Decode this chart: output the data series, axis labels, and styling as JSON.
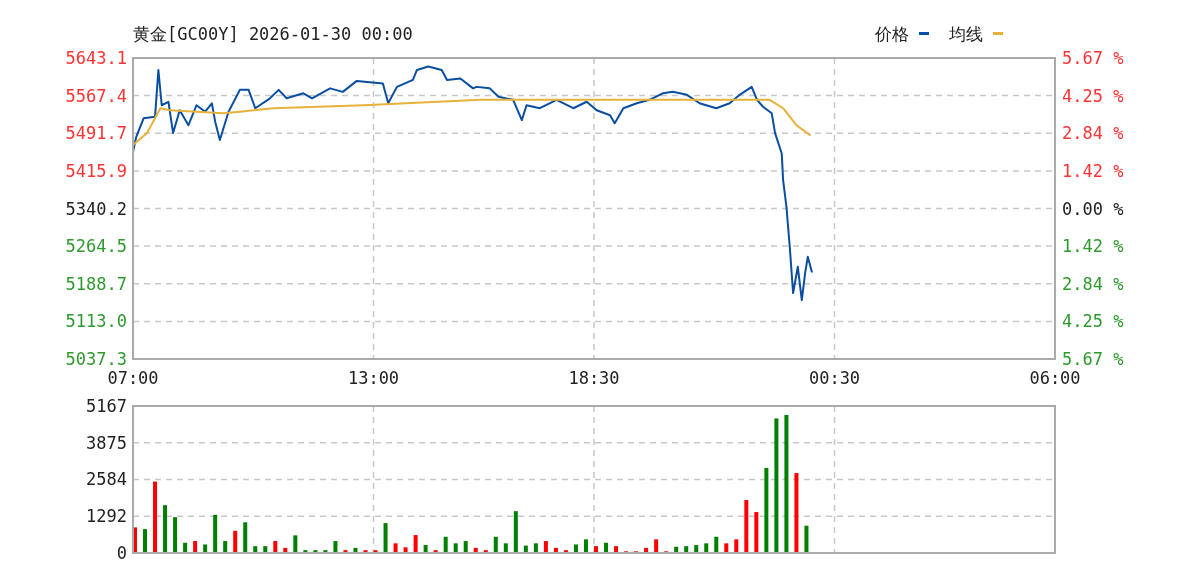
{
  "chart_data": [
    {
      "type": "line",
      "title": "黄金[GC00Y] 2026-01-30 00:00",
      "xlim": [
        "2026-01-29T07:00",
        "2026-01-30T06:00"
      ],
      "xticks": [
        {
          "value": "2026-01-29T07:00",
          "label": "07:00"
        },
        {
          "value": "2026-01-29T13:00",
          "label": "13:00"
        },
        {
          "value": "2026-01-29T18:30",
          "label": "18:30"
        },
        {
          "value": "2026-01-30T00:30",
          "label": "00:30"
        },
        {
          "value": "2026-01-30T06:00",
          "label": "06:00"
        }
      ],
      "ylim": [
        5037.3,
        5643.1
      ],
      "yticks": [
        5037.3,
        {
          "value": 5113,
          "label": "5113.0"
        },
        5188.7,
        5264.5,
        5340.2,
        5415.9,
        5491.7,
        5567.4,
        5643.1
      ],
      "y2lim": [
        -5.67,
        5.67
      ],
      "y2ticks": [
        {
          "value": -5.67,
          "label": "5.67 %"
        },
        {
          "value": -4.25,
          "label": "4.25 %"
        },
        {
          "value": -2.84,
          "label": "2.84 %"
        },
        {
          "value": -1.42,
          "label": "1.42 %"
        },
        {
          "value": 0,
          "label": "0.00 %"
        },
        {
          "value": 1.42,
          "label": "1.42 %"
        },
        {
          "value": 2.84,
          "label": "2.84 %"
        },
        {
          "value": 4.25,
          "label": "4.25 %"
        },
        {
          "value": 5.67,
          "label": "5.67 %"
        }
      ],
      "grid": true,
      "legend": "top right",
      "series": [
        {
          "name": "价格",
          "color": "#0a4ea2",
          "x": [
            "2026-01-29T07:00",
            "2026-01-29T07:05",
            "2026-01-29T07:16",
            "2026-01-29T07:33",
            "2026-01-29T07:38",
            "2026-01-29T07:43",
            "2026-01-29T07:53",
            "2026-01-29T08:00",
            "2026-01-29T08:10",
            "2026-01-29T08:23",
            "2026-01-29T08:35",
            "2026-01-29T08:48",
            "2026-01-29T08:58",
            "2026-01-29T09:03",
            "2026-01-29T09:10",
            "2026-01-29T09:23",
            "2026-01-29T09:40",
            "2026-01-29T09:53",
            "2026-01-29T10:03",
            "2026-01-29T10:25",
            "2026-01-29T10:38",
            "2026-01-29T10:50",
            "2026-01-29T11:15",
            "2026-01-29T11:28",
            "2026-01-29T11:55",
            "2026-01-29T12:14",
            "2026-01-29T12:35",
            "2026-01-29T13:14",
            "2026-01-29T13:22",
            "2026-01-29T13:35",
            "2026-01-29T13:59",
            "2026-01-29T14:05",
            "2026-01-29T14:22",
            "2026-01-29T14:42",
            "2026-01-29T14:50",
            "2026-01-29T15:10",
            "2026-01-29T15:29",
            "2026-01-29T15:34",
            "2026-01-29T15:54",
            "2026-01-29T16:07",
            "2026-01-29T16:29",
            "2026-01-29T16:42",
            "2026-01-29T16:49",
            "2026-01-29T17:09",
            "2026-01-29T17:34",
            "2026-01-29T17:59",
            "2026-01-29T18:19",
            "2026-01-29T18:34",
            "2026-01-29T18:54",
            "2026-01-29T19:01",
            "2026-01-29T19:14",
            "2026-01-29T19:34",
            "2026-01-29T19:53",
            "2026-01-29T20:13",
            "2026-01-29T20:28",
            "2026-01-29T20:49",
            "2026-01-29T21:08",
            "2026-01-29T21:33",
            "2026-01-29T21:53",
            "2026-01-29T22:08",
            "2026-01-29T22:26",
            "2026-01-29T22:34",
            "2026-01-29T22:43",
            "2026-01-29T22:56",
            "2026-01-29T23:01",
            "2026-01-29T23:11",
            "2026-01-29T23:13",
            "2026-01-29T23:18",
            "2026-01-29T23:23",
            "2026-01-29T23:28",
            "2026-01-29T23:35",
            "2026-01-29T23:41",
            "2026-01-29T23:46",
            "2026-01-29T23:50",
            "2026-01-29T23:56"
          ],
          "values": [
            5454,
            5485,
            5522,
            5525,
            5619,
            5548,
            5555,
            5492,
            5538,
            5508,
            5548,
            5535,
            5552,
            5515,
            5478,
            5535,
            5579,
            5579,
            5542,
            5562,
            5579,
            5562,
            5572,
            5562,
            5582,
            5575,
            5597,
            5592,
            5552,
            5585,
            5599,
            5619,
            5626,
            5619,
            5599,
            5602,
            5582,
            5585,
            5582,
            5565,
            5559,
            5518,
            5548,
            5542,
            5559,
            5542,
            5555,
            5538,
            5528,
            5512,
            5542,
            5552,
            5559,
            5572,
            5575,
            5569,
            5552,
            5542,
            5552,
            5569,
            5585,
            5559,
            5545,
            5532,
            5492,
            5451,
            5398,
            5344,
            5263,
            5170,
            5223,
            5156,
            5210,
            5243,
            5213
          ]
        },
        {
          "name": "均线",
          "color": "#e8b13a",
          "x": [
            "2026-01-29T07:00",
            "2026-01-29T07:21",
            "2026-01-29T07:41",
            "2026-01-29T07:55",
            "2026-01-29T09:15",
            "2026-01-29T09:40",
            "2026-01-29T10:30",
            "2026-01-29T12:45",
            "2026-01-29T15:40",
            "2026-01-29T16:04",
            "2026-01-29T22:53",
            "2026-01-29T23:13",
            "2026-01-29T23:33",
            "2026-01-29T23:53"
          ],
          "values": [
            5468,
            5492,
            5542,
            5538,
            5532,
            5535,
            5542,
            5548,
            5559,
            5559,
            5559,
            5542,
            5508,
            5488
          ]
        }
      ]
    },
    {
      "type": "bar",
      "xlim": [
        "2026-01-29T07:00",
        "2026-01-30T06:00"
      ],
      "xticks": [
        {
          "value": "2026-01-29T07:00",
          "label": null
        },
        {
          "value": "2026-01-29T13:00",
          "label": null
        },
        {
          "value": "2026-01-29T18:30",
          "label": null
        },
        {
          "value": "2026-01-30T00:30",
          "label": null
        },
        {
          "value": "2026-01-30T06:00",
          "label": null
        }
      ],
      "ylim": [
        0,
        5167
      ],
      "yticks": [
        0,
        1292,
        2584,
        3875,
        5167
      ],
      "grid": true,
      "tick_labels": "y",
      "x": [
        "2026-01-29T07:00",
        "2026-01-29T07:15",
        "2026-01-29T07:30",
        "2026-01-29T07:45",
        "2026-01-29T08:00",
        "2026-01-29T08:15",
        "2026-01-29T08:30",
        "2026-01-29T08:45",
        "2026-01-29T09:00",
        "2026-01-29T09:15",
        "2026-01-29T09:30",
        "2026-01-29T09:45",
        "2026-01-29T10:00",
        "2026-01-29T10:15",
        "2026-01-29T10:30",
        "2026-01-29T10:45",
        "2026-01-29T11:00",
        "2026-01-29T11:15",
        "2026-01-29T11:30",
        "2026-01-29T11:45",
        "2026-01-29T12:00",
        "2026-01-29T12:15",
        "2026-01-29T12:30",
        "2026-01-29T12:45",
        "2026-01-29T13:00",
        "2026-01-29T13:15",
        "2026-01-29T13:30",
        "2026-01-29T13:45",
        "2026-01-29T14:00",
        "2026-01-29T14:15",
        "2026-01-29T14:30",
        "2026-01-29T14:45",
        "2026-01-29T15:00",
        "2026-01-29T15:15",
        "2026-01-29T15:30",
        "2026-01-29T15:45",
        "2026-01-29T16:00",
        "2026-01-29T16:15",
        "2026-01-29T16:30",
        "2026-01-29T16:45",
        "2026-01-29T17:00",
        "2026-01-29T17:15",
        "2026-01-29T17:30",
        "2026-01-29T17:45",
        "2026-01-29T18:00",
        "2026-01-29T18:15",
        "2026-01-29T18:30",
        "2026-01-29T18:45",
        "2026-01-29T19:00",
        "2026-01-29T19:15",
        "2026-01-29T19:30",
        "2026-01-29T19:45",
        "2026-01-29T20:00",
        "2026-01-29T20:15",
        "2026-01-29T20:30",
        "2026-01-29T20:45",
        "2026-01-29T21:00",
        "2026-01-29T21:15",
        "2026-01-29T21:30",
        "2026-01-29T21:45",
        "2026-01-29T22:00",
        "2026-01-29T22:15",
        "2026-01-29T22:30",
        "2026-01-29T22:45",
        "2026-01-29T23:00",
        "2026-01-29T23:15",
        "2026-01-29T23:30",
        "2026-01-29T23:45"
      ],
      "values": [
        900,
        840,
        2510,
        1680,
        1260,
        360,
        420,
        300,
        1340,
        420,
        780,
        1080,
        240,
        240,
        420,
        180,
        620,
        100,
        100,
        100,
        420,
        100,
        180,
        100,
        100,
        1050,
        340,
        200,
        630,
        280,
        100,
        570,
        340,
        420,
        180,
        100,
        570,
        340,
        1470,
        260,
        340,
        420,
        180,
        100,
        300,
        480,
        240,
        360,
        240,
        60,
        60,
        180,
        480,
        60,
        220,
        240,
        280,
        340,
        570,
        340,
        480,
        1860,
        1440,
        2990,
        4730,
        4850,
        2810,
        960
      ],
      "colors": [
        "#ff0000",
        "#008000",
        "#ff0000",
        "#008000",
        "#008000",
        "#008000",
        "#ff0000",
        "#008000",
        "#008000",
        "#008000",
        "#ff0000",
        "#008000",
        "#008000",
        "#008000",
        "#ff0000",
        "#ff0000",
        "#008000",
        "#008000",
        "#008000",
        "#008000",
        "#008000",
        "#ff0000",
        "#008000",
        "#ff0000",
        "#ff0000",
        "#008000",
        "#ff0000",
        "#ff0000",
        "#ff0000",
        "#008000",
        "#ff0000",
        "#008000",
        "#008000",
        "#008000",
        "#ff0000",
        "#ff0000",
        "#008000",
        "#008000",
        "#008000",
        "#008000",
        "#008000",
        "#ff0000",
        "#ff0000",
        "#ff0000",
        "#008000",
        "#008000",
        "#ff0000",
        "#008000",
        "#ff0000",
        "#ff0000",
        "#ff0000",
        "#ff0000",
        "#ff0000",
        "#ff0000",
        "#008000",
        "#008000",
        "#008000",
        "#008000",
        "#008000",
        "#ff0000",
        "#ff0000",
        "#ff0000",
        "#ff0000",
        "#008000",
        "#008000",
        "#008000",
        "#ff0000",
        "#008000"
      ]
    }
  ]
}
